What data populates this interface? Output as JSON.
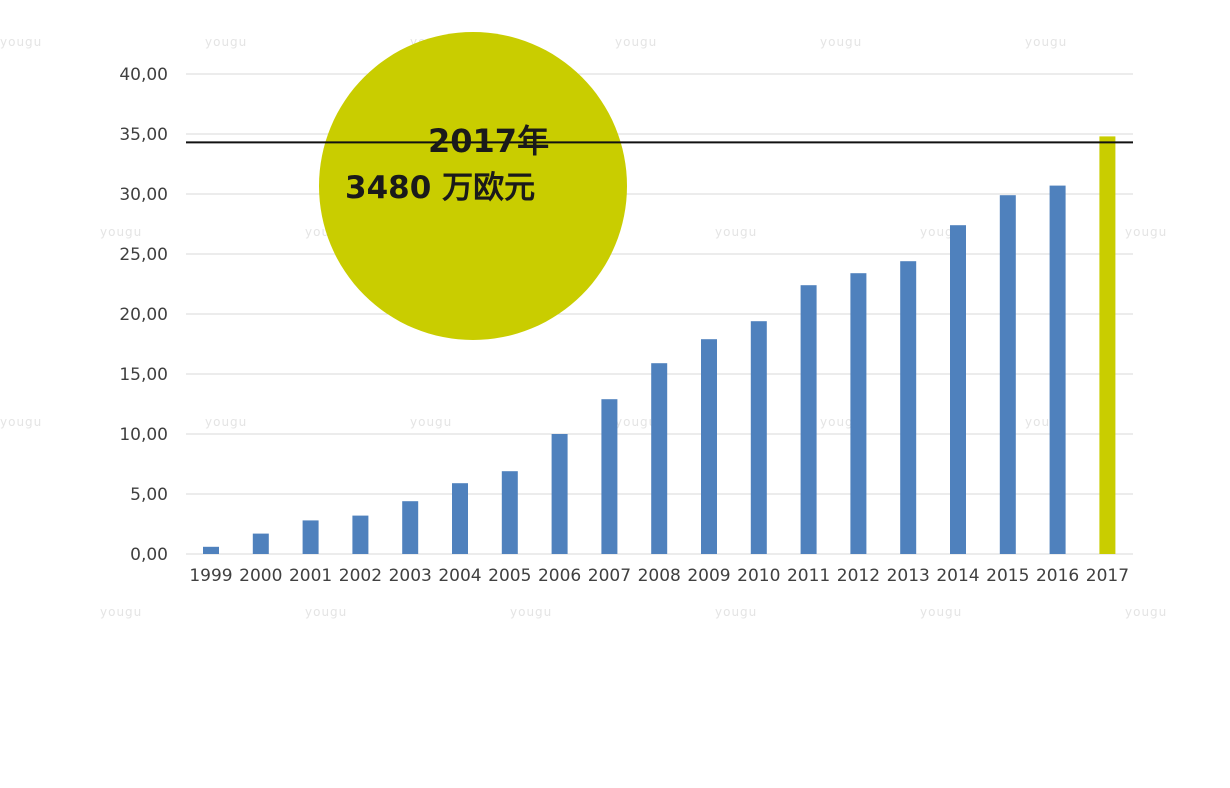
{
  "chart_data": {
    "type": "bar",
    "categories": [
      "1999",
      "2000",
      "2001",
      "2002",
      "2003",
      "2004",
      "2005",
      "2006",
      "2007",
      "2008",
      "2009",
      "2010",
      "2011",
      "2012",
      "2013",
      "2014",
      "2015",
      "2016",
      "2017"
    ],
    "values": [
      0.6,
      1.7,
      2.8,
      3.2,
      4.4,
      5.9,
      6.9,
      10.0,
      12.9,
      15.9,
      17.9,
      19.4,
      22.4,
      23.4,
      24.4,
      27.4,
      29.9,
      30.7,
      34.8
    ],
    "ylim": [
      0,
      40
    ],
    "yticks": [
      0,
      5,
      10,
      15,
      20,
      25,
      30,
      35,
      40
    ],
    "ytick_labels": [
      "0,00",
      "5,00",
      "10,00",
      "15,00",
      "20,00",
      "25,00",
      "30,00",
      "35,00",
      "40,00"
    ],
    "grid": true,
    "reference_line": 34.3,
    "colors": {
      "bar": "#4f81bd",
      "highlight": "#c9cd00",
      "callout": "#c9cd00"
    },
    "highlight_index": 18,
    "annotation": {
      "line1": "2017年",
      "line2": "3480 万欧元"
    }
  },
  "watermark": "yougu"
}
